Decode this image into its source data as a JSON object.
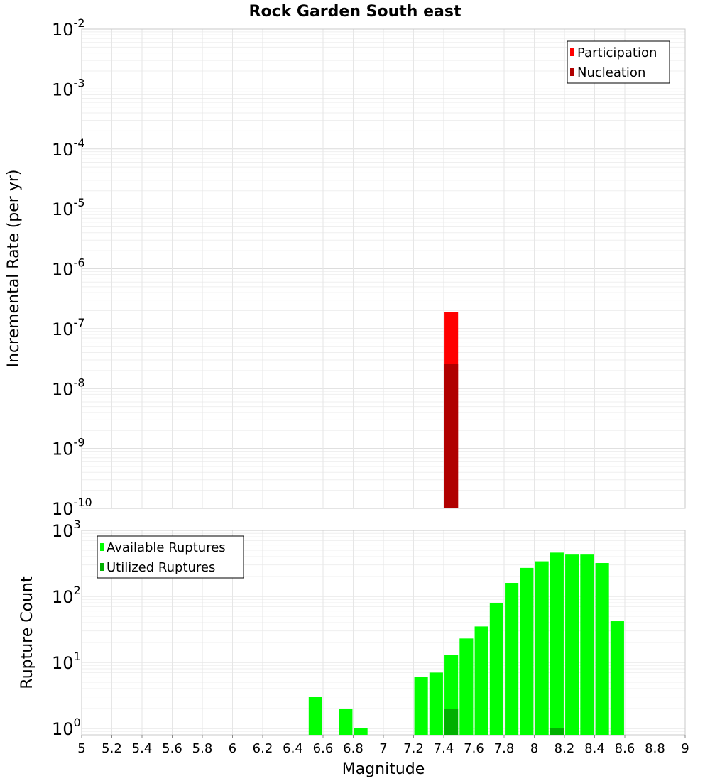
{
  "chart_data": [
    {
      "type": "bar",
      "title": "Rock Garden South east",
      "xlabel": "",
      "ylabel": "Incremental Rate (per yr)",
      "yscale": "log",
      "xlim": [
        5,
        9
      ],
      "ylim": [
        1e-10,
        0.01
      ],
      "y_tick_exponents": [
        "-2",
        "-3",
        "-4",
        "-5",
        "-6",
        "-7",
        "-8",
        "-9",
        "-10"
      ],
      "legend_position": "top-right",
      "series": [
        {
          "name": "Participation",
          "color": "#ff0000",
          "x": [
            7.45
          ],
          "values": [
            1.9e-07
          ]
        },
        {
          "name": "Nucleation",
          "color": "#b00000",
          "x": [
            7.45
          ],
          "values": [
            2.6e-08
          ]
        }
      ]
    },
    {
      "type": "bar",
      "title": "",
      "xlabel": "Magnitude",
      "ylabel": "Rupture Count",
      "yscale": "log",
      "xlim": [
        5,
        9
      ],
      "ylim": [
        0.8,
        1000
      ],
      "y_tick_exponents": [
        "3",
        "2",
        "1",
        "0"
      ],
      "x_tick_labels": [
        "5",
        "5.2",
        "5.4",
        "5.6",
        "5.8",
        "6",
        "6.2",
        "6.4",
        "6.6",
        "6.8",
        "7",
        "7.2",
        "7.4",
        "7.6",
        "7.8",
        "8",
        "8.2",
        "8.4",
        "8.6",
        "8.8",
        "9"
      ],
      "legend_position": "top-left",
      "series": [
        {
          "name": "Available Ruptures",
          "color": "#00ff00",
          "x": [
            6.55,
            6.75,
            6.85,
            7.25,
            7.35,
            7.45,
            7.55,
            7.65,
            7.75,
            7.85,
            7.95,
            8.05,
            8.15,
            8.25,
            8.35,
            8.45,
            8.55
          ],
          "values": [
            3,
            2,
            1,
            6,
            7,
            13,
            23,
            35,
            80,
            160,
            270,
            340,
            460,
            440,
            440,
            320,
            42
          ]
        },
        {
          "name": "Utilized Ruptures",
          "color": "#00b000",
          "x": [
            7.45,
            8.15
          ],
          "values": [
            2,
            1
          ]
        }
      ]
    }
  ]
}
